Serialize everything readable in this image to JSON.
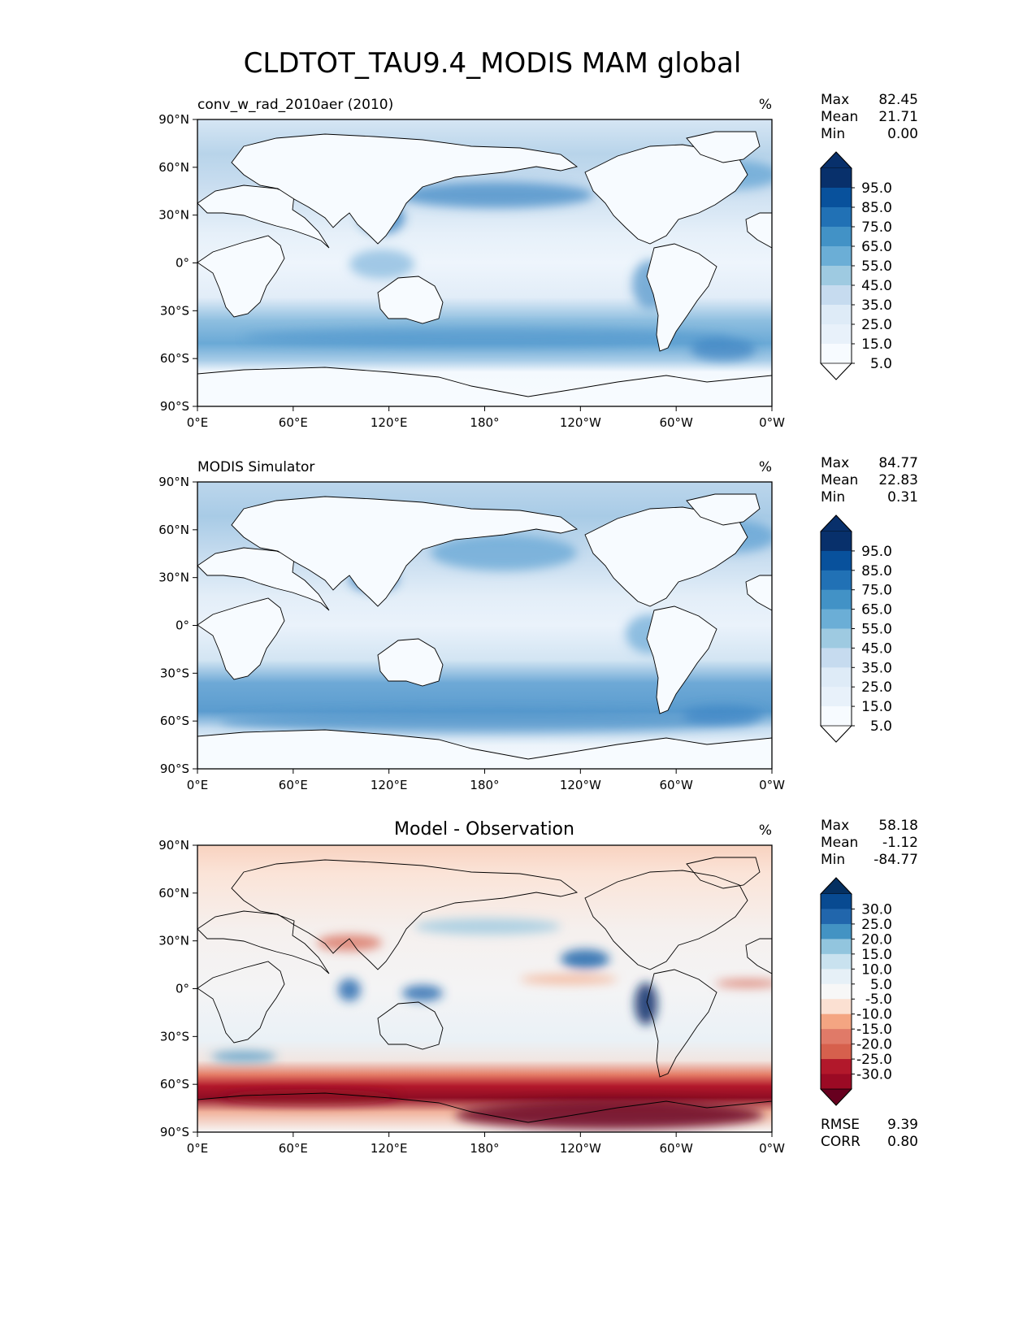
{
  "title": "CLDTOT_TAU9.4_MODIS MAM global",
  "chart_data": [
    {
      "type": "heatmap",
      "panel": "test",
      "title_left": "conv_w_rad_2010aer (2010)",
      "title_center": "",
      "units": "%",
      "stats": [
        {
          "label": "Max",
          "value": "82.45"
        },
        {
          "label": "Mean",
          "value": "21.71"
        },
        {
          "label": "Min",
          "value": "0.00"
        }
      ],
      "colorbar": {
        "levels": [
          "95.0",
          "85.0",
          "75.0",
          "65.0",
          "55.0",
          "45.0",
          "35.0",
          "25.0",
          "15.0",
          "5.0"
        ],
        "colors": [
          "#08306b",
          "#08519c",
          "#2171b5",
          "#4292c6",
          "#6baed6",
          "#9ecae1",
          "#c6dbef",
          "#deebf7",
          "#e8f1fa",
          "#f7fbff"
        ],
        "extend_top": "#08306b",
        "extend_bottom": "#ffffff"
      },
      "xticks": [
        "0°E",
        "60°E",
        "120°E",
        "180°",
        "120°W",
        "60°W",
        "0°W"
      ],
      "yticks": [
        "90°N",
        "60°N",
        "30°N",
        "0°",
        "30°S",
        "60°S",
        "90°S"
      ],
      "xlim": [
        0,
        360
      ],
      "ylim": [
        -90,
        90
      ]
    },
    {
      "type": "heatmap",
      "panel": "reference",
      "title_left": "MODIS Simulator",
      "title_center": "",
      "units": "%",
      "stats": [
        {
          "label": "Max",
          "value": "84.77"
        },
        {
          "label": "Mean",
          "value": "22.83"
        },
        {
          "label": "Min",
          "value": "0.31"
        }
      ],
      "colorbar": {
        "levels": [
          "95.0",
          "85.0",
          "75.0",
          "65.0",
          "55.0",
          "45.0",
          "35.0",
          "25.0",
          "15.0",
          "5.0"
        ],
        "colors": [
          "#08306b",
          "#08519c",
          "#2171b5",
          "#4292c6",
          "#6baed6",
          "#9ecae1",
          "#c6dbef",
          "#deebf7",
          "#e8f1fa",
          "#f7fbff"
        ],
        "extend_top": "#08306b",
        "extend_bottom": "#ffffff"
      },
      "xticks": [
        "0°E",
        "60°E",
        "120°E",
        "180°",
        "120°W",
        "60°W",
        "0°W"
      ],
      "yticks": [
        "90°N",
        "60°N",
        "30°N",
        "0°",
        "30°S",
        "60°S",
        "90°S"
      ],
      "xlim": [
        0,
        360
      ],
      "ylim": [
        -90,
        90
      ]
    },
    {
      "type": "heatmap",
      "panel": "difference",
      "title_left": "",
      "title_center": "Model - Observation",
      "units": "%",
      "stats": [
        {
          "label": "Max",
          "value": "58.18"
        },
        {
          "label": "Mean",
          "value": "-1.12"
        },
        {
          "label": "Min",
          "value": "-84.77"
        }
      ],
      "colorbar": {
        "levels": [
          "30.0",
          "25.0",
          "20.0",
          "15.0",
          "10.0",
          "5.0",
          "-5.0",
          "-10.0",
          "-15.0",
          "-20.0",
          "-25.0",
          "-30.0"
        ],
        "colors": [
          "#084a91",
          "#2166ac",
          "#4393c3",
          "#92c5de",
          "#c9e2ef",
          "#e6f0f7",
          "#f7f7f7",
          "#fbe0d2",
          "#f4a582",
          "#e07a68",
          "#d6604d",
          "#b2182b",
          "#9b0a24"
        ],
        "extend_top": "#053061",
        "extend_bottom": "#67001f"
      },
      "metrics": [
        {
          "label": "RMSE",
          "value": "9.39"
        },
        {
          "label": "CORR",
          "value": "0.80"
        }
      ],
      "xticks": [
        "0°E",
        "60°E",
        "120°E",
        "180°",
        "120°W",
        "60°W",
        "0°W"
      ],
      "yticks": [
        "90°N",
        "60°N",
        "30°N",
        "0°",
        "30°S",
        "60°S",
        "90°S"
      ],
      "xlim": [
        0,
        360
      ],
      "ylim": [
        -90,
        90
      ]
    }
  ]
}
